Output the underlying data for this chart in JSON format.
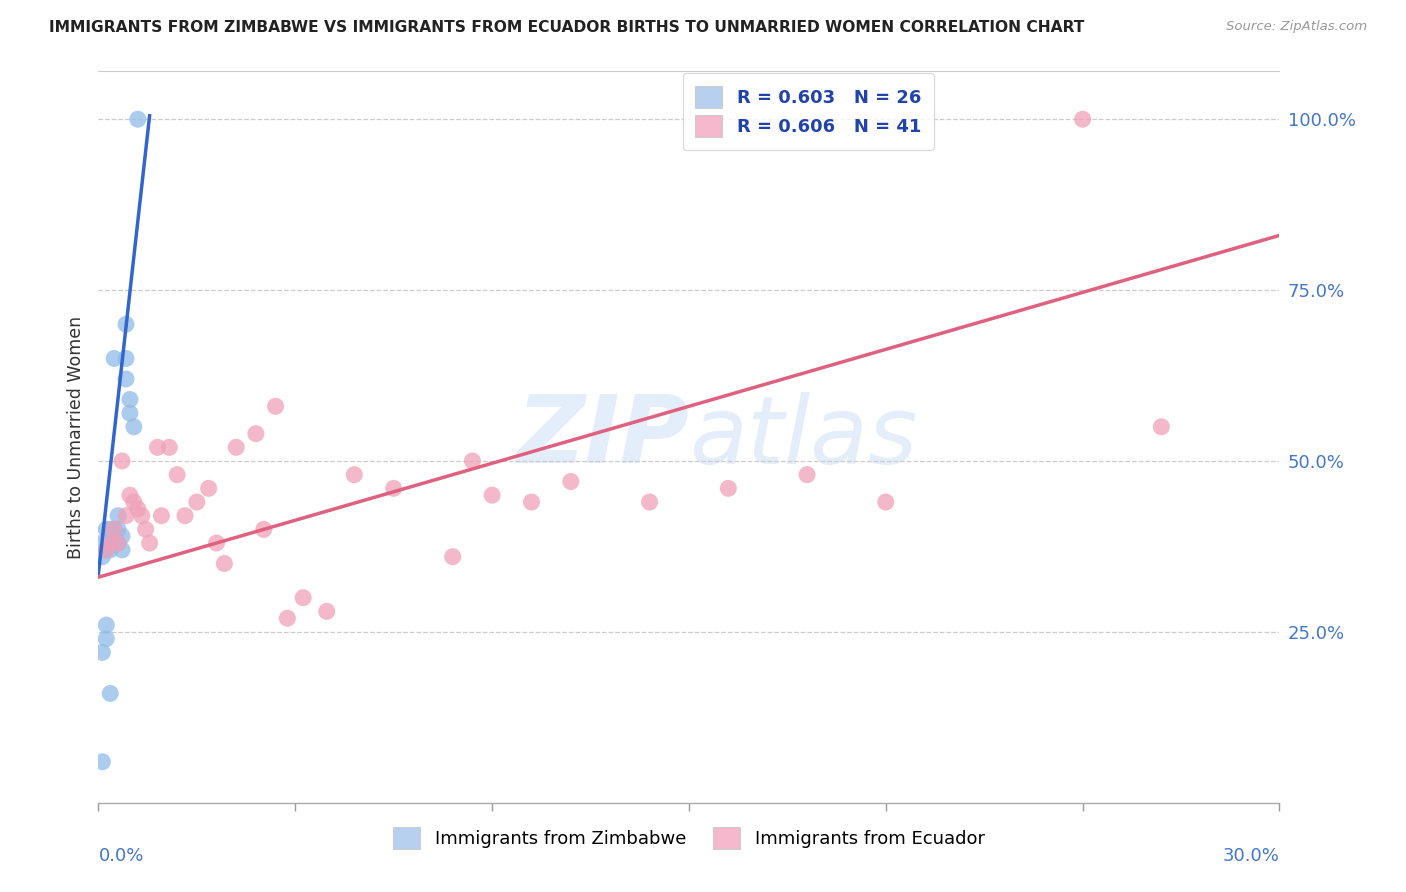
{
  "title": "IMMIGRANTS FROM ZIMBABWE VS IMMIGRANTS FROM ECUADOR BIRTHS TO UNMARRIED WOMEN CORRELATION CHART",
  "source": "Source: ZipAtlas.com",
  "ylabel": "Births to Unmarried Women",
  "watermark": "ZIPatlas",
  "xmin": 0.0,
  "xmax": 0.3,
  "ymin": 0.0,
  "ymax": 1.07,
  "ytick_positions": [
    0.0,
    0.25,
    0.5,
    0.75,
    1.0
  ],
  "ytick_labels": [
    "",
    "25.0%",
    "50.0%",
    "75.0%",
    "100.0%"
  ],
  "xtick_positions": [
    0.0,
    0.05,
    0.1,
    0.15,
    0.2,
    0.25,
    0.3
  ],
  "legend_top": [
    {
      "label": "R = 0.603   N = 26",
      "facecolor": "#b8d0f0"
    },
    {
      "label": "R = 0.606   N = 41",
      "facecolor": "#f5b8cc"
    }
  ],
  "legend_bottom": [
    {
      "label": "Immigrants from Zimbabwe",
      "facecolor": "#b8d0f0"
    },
    {
      "label": "Immigrants from Ecuador",
      "facecolor": "#f5b8cc"
    }
  ],
  "zimbabwe_color": "#90bce8",
  "ecuador_color": "#f0a0b8",
  "zimbabwe_trend_color": "#3366cc",
  "ecuador_trend_color": "#e06080",
  "zimbabwe_x": [
    0.001,
    0.001,
    0.002,
    0.002,
    0.003,
    0.003,
    0.003,
    0.004,
    0.004,
    0.005,
    0.005,
    0.005,
    0.006,
    0.006,
    0.007,
    0.007,
    0.007,
    0.008,
    0.008,
    0.009,
    0.01,
    0.001,
    0.002,
    0.002,
    0.003,
    0.001
  ],
  "zimbabwe_y": [
    0.36,
    0.38,
    0.37,
    0.4,
    0.37,
    0.38,
    0.4,
    0.4,
    0.65,
    0.38,
    0.4,
    0.42,
    0.37,
    0.39,
    0.62,
    0.65,
    0.7,
    0.57,
    0.59,
    0.55,
    1.0,
    0.22,
    0.24,
    0.26,
    0.16,
    0.06
  ],
  "ecuador_x": [
    0.002,
    0.003,
    0.004,
    0.005,
    0.006,
    0.007,
    0.008,
    0.009,
    0.01,
    0.011,
    0.012,
    0.013,
    0.015,
    0.016,
    0.018,
    0.02,
    0.022,
    0.025,
    0.028,
    0.03,
    0.032,
    0.035,
    0.04,
    0.042,
    0.045,
    0.048,
    0.052,
    0.058,
    0.065,
    0.075,
    0.09,
    0.095,
    0.1,
    0.11,
    0.12,
    0.14,
    0.16,
    0.18,
    0.2,
    0.25,
    0.27
  ],
  "ecuador_y": [
    0.37,
    0.38,
    0.4,
    0.38,
    0.5,
    0.42,
    0.45,
    0.44,
    0.43,
    0.42,
    0.4,
    0.38,
    0.52,
    0.42,
    0.52,
    0.48,
    0.42,
    0.44,
    0.46,
    0.38,
    0.35,
    0.52,
    0.54,
    0.4,
    0.58,
    0.27,
    0.3,
    0.28,
    0.48,
    0.46,
    0.36,
    0.5,
    0.45,
    0.44,
    0.47,
    0.44,
    0.46,
    0.48,
    0.44,
    1.0,
    0.55
  ],
  "zimbabwe_trend_x": [
    0.0,
    0.013
  ],
  "zimbabwe_trend_y": [
    0.335,
    1.005
  ],
  "ecuador_trend_x": [
    0.0,
    0.3
  ],
  "ecuador_trend_y": [
    0.33,
    0.83
  ]
}
